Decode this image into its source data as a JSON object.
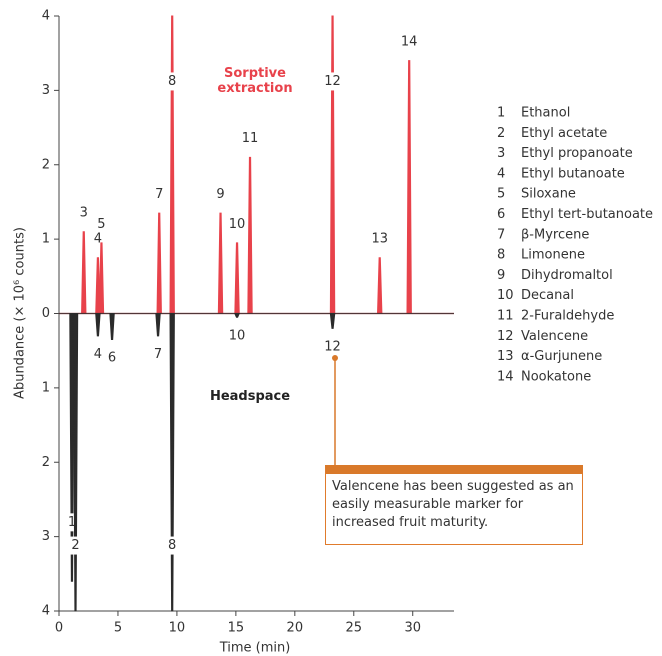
{
  "chart_data": {
    "type": "mirror-chromatogram",
    "x_label": "Time (min)",
    "y_label": "Abundance (× 10⁶ counts)",
    "xlim": [
      0,
      33.5
    ],
    "xticks": [
      0,
      5,
      10,
      15,
      20,
      25,
      30
    ],
    "ylim": [
      -4,
      4
    ],
    "yticks": [
      {
        "value": -4,
        "label": "4"
      },
      {
        "value": -3,
        "label": "3"
      },
      {
        "value": -2,
        "label": "2"
      },
      {
        "value": -1,
        "label": "1"
      },
      0,
      1,
      2,
      3,
      4
    ],
    "series": [
      {
        "name": "Sorptive extraction",
        "color": "#e8424b",
        "x": [
          2.1,
          3.3,
          3.6,
          8.5,
          9.6,
          13.7,
          15.1,
          16.2,
          23.2,
          27.2,
          29.7
        ],
        "values": [
          1.1,
          0.75,
          0.95,
          1.35,
          4,
          1.35,
          0.95,
          2.1,
          4,
          0.75,
          3.4
        ],
        "labels": [
          "3",
          "4",
          "5",
          "7",
          "8",
          "9",
          "10",
          "11",
          "12",
          "13",
          "14"
        ]
      },
      {
        "name": "Headspace",
        "color": "#2b2b2b",
        "x": [
          1.1,
          1.4,
          3.3,
          4.5,
          8.4,
          9.6,
          15.1,
          23.2
        ],
        "values": [
          -3.6,
          -4,
          -0.3,
          -0.35,
          -0.3,
          -4,
          -0.05,
          -0.2
        ],
        "labels": [
          "1",
          "2",
          "4",
          "6",
          "7",
          "8",
          "10",
          "12"
        ]
      }
    ],
    "compounds": [
      {
        "number": "1",
        "name": "Ethanol"
      },
      {
        "number": "2",
        "name": "Ethyl acetate"
      },
      {
        "number": "3",
        "name": "Ethyl propanoate"
      },
      {
        "number": "4",
        "name": "Ethyl butanoate"
      },
      {
        "number": "5",
        "name": "Siloxane"
      },
      {
        "number": "6",
        "name": "Ethyl tert-butanoate"
      },
      {
        "number": "7",
        "name": "β-Myrcene"
      },
      {
        "number": "8",
        "name": "Limonene"
      },
      {
        "number": "9",
        "name": "Dihydromaltol"
      },
      {
        "number": "10",
        "name": "Decanal"
      },
      {
        "number": "11",
        "name": "2-Furaldehyde"
      },
      {
        "number": "12",
        "name": "Valencene"
      },
      {
        "number": "13",
        "name": "α-Gurjunene"
      },
      {
        "number": "14",
        "name": "Nookatone"
      }
    ],
    "annotation": "Valencene has been suggested as an easily measurable marker for increased fruit maturity."
  }
}
